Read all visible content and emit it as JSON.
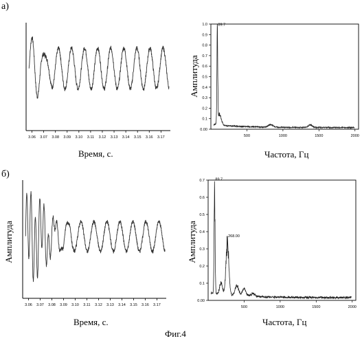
{
  "figure_caption": "Фиг.4",
  "chart_data": [
    {
      "type": "line",
      "panel": "a)",
      "title": "",
      "xlabel": "Время, с.",
      "ylabel": "",
      "xlim": [
        3.055,
        3.178
      ],
      "ylim": [
        -1,
        1
      ],
      "xticks": [
        "3.06",
        "3.07",
        "3.08",
        "3.09",
        "3.10",
        "3.11",
        "3.12",
        "3.13",
        "3.14",
        "3.15",
        "3.16",
        "3.17"
      ],
      "xtick_values": [
        3.06,
        3.07,
        3.08,
        3.09,
        3.1,
        3.11,
        3.12,
        3.13,
        3.14,
        3.15,
        3.16,
        3.17
      ],
      "signal": {
        "start": 3.0575,
        "end": 3.177,
        "freq": 89.7,
        "sustained_amplitude": 0.45,
        "transient": [
          {
            "t": 3.065,
            "amp": 0.35,
            "freq": 120,
            "decay": 0.006
          }
        ],
        "noise": 0.05
      }
    },
    {
      "type": "line",
      "panel": "a)",
      "title": "",
      "xlabel": "Частота, Гц",
      "ylabel": "Амплитуда",
      "xlim": [
        0,
        2050
      ],
      "ylim": [
        0,
        1.0
      ],
      "yticks": [
        "0.00",
        "0.1",
        "0.2",
        "0.3",
        "0.4",
        "0.5",
        "0.6",
        "0.7",
        "0.8",
        "0.9",
        "1.0"
      ],
      "ytick_values": [
        0,
        0.1,
        0.2,
        0.3,
        0.4,
        0.5,
        0.6,
        0.7,
        0.8,
        0.9,
        1.0
      ],
      "xticks": [
        "500",
        "1000",
        "1500",
        "2000"
      ],
      "xtick_values": [
        500,
        1000,
        1500,
        2000
      ],
      "peaks": [
        {
          "x": 89.7,
          "y": 0.97,
          "width": 6,
          "label": "89.7"
        },
        {
          "x": 120,
          "y": 0.12,
          "width": 25,
          "label": ""
        },
        {
          "x": 830,
          "y": 0.03,
          "width": 30,
          "label": ""
        },
        {
          "x": 1380,
          "y": 0.03,
          "width": 25,
          "label": ""
        }
      ],
      "baseline": 0.01
    },
    {
      "type": "line",
      "panel": "б)",
      "title": "",
      "xlabel": "Время, с.",
      "ylabel": "Амплитуда",
      "xlim": [
        3.055,
        3.178
      ],
      "ylim": [
        -1,
        1
      ],
      "xticks": [
        "3.06",
        "3.07",
        "3.08",
        "3.09",
        "3.10",
        "3.11",
        "3.12",
        "3.13",
        "3.14",
        "3.15",
        "3.16",
        "3.17"
      ],
      "xtick_values": [
        3.06,
        3.07,
        3.08,
        3.09,
        3.1,
        3.11,
        3.12,
        3.13,
        3.14,
        3.15,
        3.16,
        3.17
      ],
      "signal": {
        "start": 3.0575,
        "end": 3.177,
        "freq": 89.7,
        "sustained_amplitude": 0.3,
        "transient": [
          {
            "t": 3.062,
            "amp": 0.75,
            "freq": 268,
            "decay": 0.012
          }
        ],
        "noise": 0.04
      }
    },
    {
      "type": "line",
      "panel": "б)",
      "title": "",
      "xlabel": "Частота, Гц",
      "ylabel": "Амплитуда",
      "xlim": [
        0,
        2050
      ],
      "ylim": [
        0,
        0.7
      ],
      "yticks": [
        "0.00",
        "0.1",
        "0.2",
        "0.3",
        "0.4",
        "0.5",
        "0.6",
        "0.7"
      ],
      "ytick_values": [
        0,
        0.1,
        0.2,
        0.3,
        0.4,
        0.5,
        0.6,
        0.7
      ],
      "xticks": [
        "500",
        "1000",
        "1500",
        "2000"
      ],
      "xtick_values": [
        500,
        1000,
        1500,
        2000
      ],
      "peaks": [
        {
          "x": 89.7,
          "y": 0.69,
          "width": 7,
          "label": "89.7"
        },
        {
          "x": 268,
          "y": 0.36,
          "width": 20,
          "label": "268.00"
        },
        {
          "x": 180,
          "y": 0.08,
          "width": 20,
          "label": ""
        },
        {
          "x": 400,
          "y": 0.07,
          "width": 25,
          "label": ""
        },
        {
          "x": 500,
          "y": 0.05,
          "width": 25,
          "label": ""
        },
        {
          "x": 620,
          "y": 0.02,
          "width": 30,
          "label": ""
        }
      ],
      "baseline": 0.01
    }
  ]
}
